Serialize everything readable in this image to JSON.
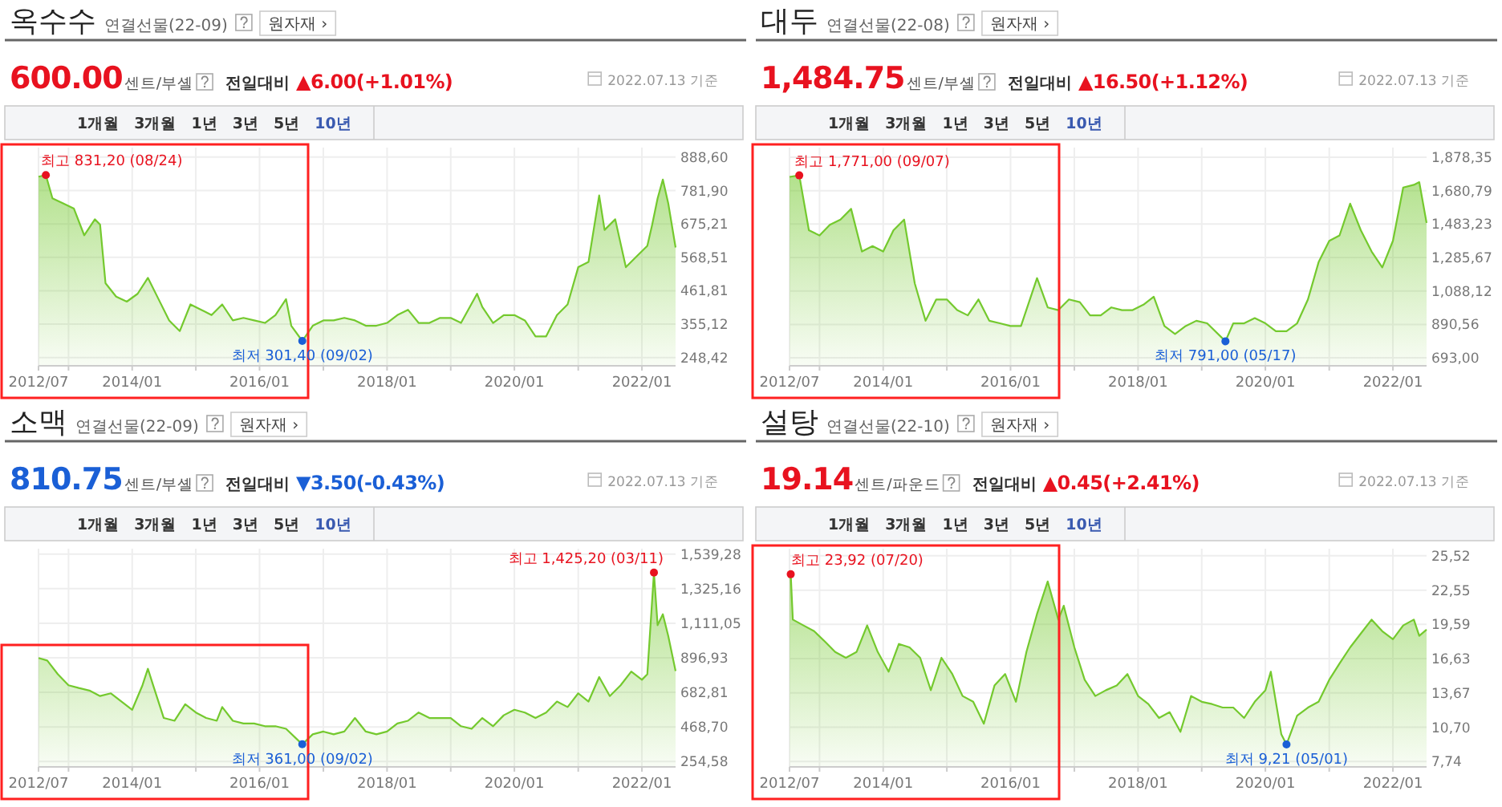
{
  "chart_data": [
    {
      "type": "area",
      "title": "옥수수",
      "subtitle": "연결선물(22-09)",
      "grid": true,
      "annotations": [
        "원자재 ›",
        "600.00",
        "센트/부셸",
        "전일대비",
        "▲6.00(+1.01%)",
        "2022.07.13 기준",
        "1개월",
        "3개월",
        "1년",
        "3년",
        "5년",
        "10년",
        {
          "text": "최고 831,20 (08/24)",
          "x": "2012-08-24",
          "y": 831.2
        },
        {
          "text": "최저 301,40 (09/02)",
          "x": "2016-09-02",
          "y": 301.4
        }
      ],
      "x": [
        "2012-07-13",
        "2012-08-24",
        "2012-10",
        "2012-12",
        "2013-02",
        "2013-04",
        "2013-06",
        "2013-07",
        "2013-08",
        "2013-10",
        "2013-12",
        "2014-02",
        "2014-04",
        "2014-06",
        "2014-08",
        "2014-10",
        "2014-12",
        "2015-02",
        "2015-04",
        "2015-06",
        "2015-08",
        "2015-10",
        "2015-12",
        "2016-02",
        "2016-04",
        "2016-06",
        "2016-07",
        "2016-09-02",
        "2016-11",
        "2017-01",
        "2017-03",
        "2017-05",
        "2017-07",
        "2017-09",
        "2017-11",
        "2018-01",
        "2018-03",
        "2018-05",
        "2018-07",
        "2018-09",
        "2018-11",
        "2019-01",
        "2019-03",
        "2019-06",
        "2019-07",
        "2019-09",
        "2019-11",
        "2020-01",
        "2020-03",
        "2020-05",
        "2020-07",
        "2020-09",
        "2020-11",
        "2021-01",
        "2021-03",
        "2021-05",
        "2021-06",
        "2021-08",
        "2021-10",
        "2021-12",
        "2022-02",
        "2022-03",
        "2022-04",
        "2022-05",
        "2022-06",
        "2022-07-13"
      ],
      "series": [
        {
          "color": "#74c92e",
          "values": [
            826,
            831.2,
            757,
            741,
            724,
            639,
            690,
            673,
            486,
            443,
            427,
            452,
            503,
            435,
            367,
            333,
            418,
            401,
            384,
            418,
            367,
            375,
            367,
            359,
            384,
            435,
            350,
            301.4,
            350,
            367,
            367,
            375,
            367,
            350,
            350,
            359,
            384,
            401,
            359,
            359,
            375,
            375,
            359,
            452,
            410,
            359,
            384,
            384,
            367,
            316,
            316,
            384,
            418,
            537,
            554,
            766,
            656,
            690,
            537,
            571,
            605,
            673,
            757,
            817,
            741,
            600
          ]
        }
      ],
      "xlim": [
        "2012-07-13",
        "2022-07-13"
      ],
      "xticks": [
        {
          "value": "2012-07-13",
          "label": "2012/07"
        },
        {
          "value": "2013-01",
          "label": null
        },
        {
          "value": "2014-01",
          "label": "2014/01"
        },
        {
          "value": "2015-01",
          "label": null
        },
        {
          "value": "2016-01",
          "label": "2016/01"
        },
        {
          "value": "2017-01",
          "label": null
        },
        {
          "value": "2018-01",
          "label": "2018/01"
        },
        {
          "value": "2019-01",
          "label": null
        },
        {
          "value": "2020-01",
          "label": "2020/01"
        },
        {
          "value": "2021-01",
          "label": null
        },
        {
          "value": "2022-01",
          "label": "2022/01"
        }
      ],
      "ylim": [
        222,
        919
      ],
      "yticks": [
        {
          "value": 248.42,
          "label": "248,42"
        },
        {
          "value": 355.12,
          "label": "355,12"
        },
        {
          "value": 461.81,
          "label": "461,81"
        },
        {
          "value": 568.51,
          "label": "568,51"
        },
        {
          "value": 675.21,
          "label": "675,21"
        },
        {
          "value": 781.9,
          "label": "781,90"
        },
        {
          "value": 888.6,
          "label": "888,60"
        }
      ]
    },
    {
      "type": "area",
      "title": "대두",
      "subtitle": "연결선물(22-08)",
      "grid": true,
      "annotations": [
        "원자재 ›",
        "1,484.75",
        "센트/부셸",
        "전일대비",
        "▲16.50(+1.12%)",
        "2022.07.13 기준",
        "1개월",
        "3개월",
        "1년",
        "3년",
        "5년",
        "10년",
        {
          "text": "최고 1,771,00 (09/07)",
          "x": "2012-09-07",
          "y": 1771
        },
        {
          "text": "최저 791,00 (05/17)",
          "x": "2019-05-17",
          "y": 791
        }
      ],
      "x": [
        "2012-07-13",
        "2012-09-07",
        "2012-11",
        "2013-01",
        "2013-03",
        "2013-05",
        "2013-07",
        "2013-09",
        "2013-11",
        "2014-01",
        "2014-03",
        "2014-05",
        "2014-07",
        "2014-09",
        "2014-11",
        "2015-01",
        "2015-03",
        "2015-05",
        "2015-07",
        "2015-09",
        "2015-11",
        "2016-01",
        "2016-03",
        "2016-06",
        "2016-08",
        "2016-10",
        "2016-12",
        "2017-02",
        "2017-04",
        "2017-06",
        "2017-08",
        "2017-10",
        "2017-12",
        "2018-02",
        "2018-04",
        "2018-06",
        "2018-08",
        "2018-10",
        "2018-12",
        "2019-02",
        "2019-05-17",
        "2019-07",
        "2019-09",
        "2019-11",
        "2020-01",
        "2020-03",
        "2020-05",
        "2020-07",
        "2020-09",
        "2020-11",
        "2021-01",
        "2021-03",
        "2021-05",
        "2021-07",
        "2021-09",
        "2021-11",
        "2022-01",
        "2022-03",
        "2022-05",
        "2022-06",
        "2022-07-13"
      ],
      "series": [
        {
          "color": "#74c92e",
          "values": [
            1762,
            1771,
            1447,
            1416,
            1479,
            1510,
            1573,
            1321,
            1353,
            1321,
            1447,
            1510,
            1133,
            912,
            1038,
            1038,
            975,
            944,
            1038,
            912,
            897,
            881,
            881,
            1164,
            991,
            975,
            1038,
            1022,
            944,
            944,
            991,
            975,
            975,
            1007,
            1054,
            881,
            834,
            881,
            912,
            897,
            791,
            897,
            897,
            928,
            897,
            850,
            850,
            897,
            1038,
            1258,
            1384,
            1416,
            1604,
            1447,
            1321,
            1227,
            1384,
            1699,
            1715,
            1731,
            1490
          ]
        }
      ],
      "xlim": [
        "2012-07-13",
        "2022-07-13"
      ],
      "xticks": [
        {
          "value": "2012-07-13",
          "label": "2012/07"
        },
        {
          "value": "2013-01",
          "label": null
        },
        {
          "value": "2014-01",
          "label": "2014/01"
        },
        {
          "value": "2015-01",
          "label": null
        },
        {
          "value": "2016-01",
          "label": "2016/01"
        },
        {
          "value": "2017-01",
          "label": null
        },
        {
          "value": "2018-01",
          "label": "2018/01"
        },
        {
          "value": "2019-01",
          "label": null
        },
        {
          "value": "2020-01",
          "label": "2020/01"
        },
        {
          "value": "2021-01",
          "label": null
        },
        {
          "value": "2022-01",
          "label": "2022/01"
        }
      ],
      "ylim": [
        646,
        1935
      ],
      "yticks": [
        {
          "value": 693,
          "label": "693,00"
        },
        {
          "value": 890.56,
          "label": "890,56"
        },
        {
          "value": 1088.12,
          "label": "1,088,12"
        },
        {
          "value": 1285.67,
          "label": "1,285,67"
        },
        {
          "value": 1483.23,
          "label": "1,483,23"
        },
        {
          "value": 1680.79,
          "label": "1,680,79"
        },
        {
          "value": 1878.35,
          "label": "1,878,35"
        }
      ]
    },
    {
      "type": "area",
      "title": "소맥",
      "subtitle": "연결선물(22-09)",
      "grid": true,
      "annotations": [
        "원자재 ›",
        "810.75",
        "센트/부셸",
        "전일대비",
        "▼3.50(-0.43%)",
        "2022.07.13 기준",
        "1개월",
        "3개월",
        "1년",
        "3년",
        "5년",
        "10년",
        {
          "text": "최고 1,425,20 (03/11)",
          "x": "2022-03-11",
          "y": 1425.2
        },
        {
          "text": "최저 361,00 (09/02)",
          "x": "2016-09-02",
          "y": 361
        }
      ],
      "x": [
        "2012-07-13",
        "2012-09",
        "2012-11",
        "2013-01",
        "2013-03",
        "2013-05",
        "2013-07",
        "2013-09",
        "2013-11",
        "2014-01",
        "2014-03",
        "2014-04",
        "2014-05",
        "2014-07",
        "2014-09",
        "2014-11",
        "2015-01",
        "2015-03",
        "2015-05",
        "2015-06",
        "2015-08",
        "2015-10",
        "2015-12",
        "2016-02",
        "2016-04",
        "2016-06",
        "2016-09-02",
        "2016-11",
        "2017-01",
        "2017-03",
        "2017-05",
        "2017-07",
        "2017-09",
        "2017-11",
        "2018-01",
        "2018-03",
        "2018-05",
        "2018-07",
        "2018-09",
        "2018-11",
        "2019-01",
        "2019-03",
        "2019-05",
        "2019-07",
        "2019-09",
        "2019-11",
        "2020-01",
        "2020-03",
        "2020-05",
        "2020-07",
        "2020-09",
        "2020-11",
        "2021-01",
        "2021-03",
        "2021-05",
        "2021-07",
        "2021-09",
        "2021-11",
        "2022-01",
        "2022-02",
        "2022-03-11",
        "2022-04",
        "2022-05",
        "2022-06",
        "2022-07-13"
      ],
      "series": [
        {
          "color": "#74c92e",
          "values": [
            896,
            880,
            795,
            727,
            710,
            694,
            660,
            677,
            626,
            575,
            727,
            829,
            727,
            524,
            507,
            609,
            558,
            524,
            507,
            592,
            507,
            490,
            490,
            473,
            473,
            457,
            361,
            423,
            440,
            423,
            440,
            524,
            440,
            423,
            440,
            490,
            507,
            558,
            524,
            524,
            524,
            473,
            457,
            524,
            473,
            541,
            575,
            558,
            524,
            558,
            626,
            592,
            677,
            626,
            778,
            660,
            727,
            812,
            761,
            795,
            1425.2,
            1099,
            1167,
            1032,
            815
          ]
        }
      ],
      "xlim": [
        "2012-07-13",
        "2022-07-13"
      ],
      "xticks": [
        {
          "value": "2012-07-13",
          "label": "2012/07"
        },
        {
          "value": "2013-01",
          "label": null
        },
        {
          "value": "2014-01",
          "label": "2014/01"
        },
        {
          "value": "2015-01",
          "label": null
        },
        {
          "value": "2016-01",
          "label": "2016/01"
        },
        {
          "value": "2017-01",
          "label": null
        },
        {
          "value": "2018-01",
          "label": "2018/01"
        },
        {
          "value": "2019-01",
          "label": null
        },
        {
          "value": "2020-01",
          "label": "2020/01"
        },
        {
          "value": "2021-01",
          "label": null
        },
        {
          "value": "2022-01",
          "label": "2022/01"
        }
      ],
      "ylim": [
        221,
        1573
      ],
      "yticks": [
        {
          "value": 254.58,
          "label": "254,58"
        },
        {
          "value": 468.7,
          "label": "468,70"
        },
        {
          "value": 682.81,
          "label": "682,81"
        },
        {
          "value": 896.93,
          "label": "896,93"
        },
        {
          "value": 1111.05,
          "label": "1,111,05"
        },
        {
          "value": 1325.16,
          "label": "1,325,16"
        },
        {
          "value": 1539.28,
          "label": "1,539,28"
        }
      ]
    },
    {
      "type": "area",
      "title": "설탕",
      "subtitle": "연결선물(22-10)",
      "grid": true,
      "annotations": [
        "원자재 ›",
        "19.14",
        "센트/파운드",
        "전일대비",
        "▲0.45(+2.41%)",
        "2022.07.13 기준",
        "1개월",
        "3개월",
        "1년",
        "3년",
        "5년",
        "10년",
        {
          "text": "최고 23,92 (07/20)",
          "x": "2012-07-20",
          "y": 23.92
        },
        {
          "text": "최저 9,21 (05/01)",
          "x": "2020-05-01",
          "y": 9.21
        }
      ],
      "x": [
        "2012-07-13",
        "2012-07-20",
        "2012-08",
        "2012-10",
        "2012-12",
        "2013-02",
        "2013-04",
        "2013-06",
        "2013-08",
        "2013-10",
        "2013-12",
        "2014-02",
        "2014-04",
        "2014-06",
        "2014-08",
        "2014-10",
        "2014-12",
        "2015-02",
        "2015-04",
        "2015-06",
        "2015-08",
        "2015-10",
        "2015-12",
        "2016-02",
        "2016-04",
        "2016-06",
        "2016-08",
        "2016-10",
        "2016-11",
        "2017-01",
        "2017-03",
        "2017-05",
        "2017-07",
        "2017-09",
        "2017-11",
        "2018-01",
        "2018-03",
        "2018-05",
        "2018-07",
        "2018-09",
        "2018-11",
        "2019-01",
        "2019-03",
        "2019-05",
        "2019-07",
        "2019-09",
        "2019-11",
        "2020-01",
        "2020-02",
        "2020-04",
        "2020-05-01",
        "2020-07",
        "2020-09",
        "2020-11",
        "2021-01",
        "2021-03",
        "2021-05",
        "2021-07",
        "2021-09",
        "2021-11",
        "2022-01",
        "2022-03",
        "2022-05",
        "2022-06",
        "2022-07-13"
      ],
      "series": [
        {
          "color": "#74c92e",
          "values": [
            23.6,
            23.92,
            20.0,
            19.5,
            19.0,
            18.1,
            17.2,
            16.7,
            17.2,
            19.5,
            17.2,
            15.5,
            17.9,
            17.6,
            16.7,
            13.9,
            16.7,
            15.3,
            13.4,
            12.9,
            11.0,
            14.3,
            15.3,
            12.9,
            17.2,
            20.5,
            23.3,
            20.0,
            21.2,
            17.6,
            14.8,
            13.4,
            13.9,
            14.3,
            15.3,
            13.4,
            12.7,
            11.5,
            12.0,
            10.3,
            13.4,
            12.9,
            12.7,
            12.4,
            12.4,
            11.5,
            12.9,
            13.9,
            15.5,
            10.1,
            9.21,
            11.7,
            12.4,
            12.9,
            14.8,
            16.2,
            17.6,
            18.8,
            20.0,
            19.0,
            18.3,
            19.5,
            20.0,
            18.6,
            19.14
          ]
        }
      ],
      "xlim": [
        "2012-07-13",
        "2022-07-13"
      ],
      "xticks": [
        {
          "value": "2012-07-13",
          "label": "2012/07"
        },
        {
          "value": "2013-01",
          "label": null
        },
        {
          "value": "2014-01",
          "label": "2014/01"
        },
        {
          "value": "2015-01",
          "label": null
        },
        {
          "value": "2016-01",
          "label": "2016/01"
        },
        {
          "value": "2017-01",
          "label": null
        },
        {
          "value": "2018-01",
          "label": "2018/01"
        },
        {
          "value": "2019-01",
          "label": null
        },
        {
          "value": "2020-01",
          "label": "2020/01"
        },
        {
          "value": "2021-01",
          "label": null
        },
        {
          "value": "2022-01",
          "label": "2022/01"
        }
      ],
      "ylim": [
        7.27,
        26.13
      ],
      "yticks": [
        {
          "value": 7.74,
          "label": "7,74"
        },
        {
          "value": 10.7,
          "label": "10,70"
        },
        {
          "value": 13.67,
          "label": "13,67"
        },
        {
          "value": 16.63,
          "label": "16,63"
        },
        {
          "value": 19.59,
          "label": "19,59"
        },
        {
          "value": 22.55,
          "label": "22,55"
        },
        {
          "value": 25.52,
          "label": "25,52"
        }
      ]
    }
  ]
}
